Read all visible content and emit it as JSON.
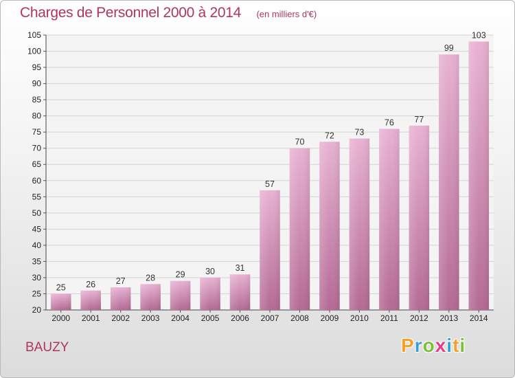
{
  "header": {
    "title": "Charges de Personnel 2000 à 2014",
    "unit": "(en milliers d'€)"
  },
  "footer": {
    "commune": "BAUZY",
    "logo_letters": [
      "P",
      "r",
      "o",
      "x",
      "i",
      "t",
      "i"
    ],
    "logo_colors": [
      "#f4a02a",
      "#3aa0d8",
      "#7bbf3a",
      "#e8398a",
      "#3aa0d8",
      "#f4a02a",
      "#7bbf3a"
    ]
  },
  "colors": {
    "bar_light": "#e8b2d2",
    "bar_dark": "#b46a94",
    "grid": "#d4d4d4",
    "title": "#b03462"
  },
  "chart_data": {
    "type": "bar",
    "title": "Charges de Personnel 2000 à 2014",
    "subtitle": "(en milliers d'€)",
    "categories": [
      "2000",
      "2001",
      "2002",
      "2003",
      "2004",
      "2005",
      "2006",
      "2007",
      "2008",
      "2009",
      "2010",
      "2011",
      "2012",
      "2013",
      "2014"
    ],
    "values": [
      25,
      26,
      27,
      28,
      29,
      30,
      31,
      57,
      70,
      72,
      73,
      76,
      77,
      99,
      103
    ],
    "ylim": [
      20,
      105
    ],
    "yticks": [
      20,
      25,
      30,
      35,
      40,
      45,
      50,
      55,
      60,
      65,
      70,
      75,
      80,
      85,
      90,
      95,
      100,
      105
    ],
    "grid": true,
    "legend": "none"
  }
}
